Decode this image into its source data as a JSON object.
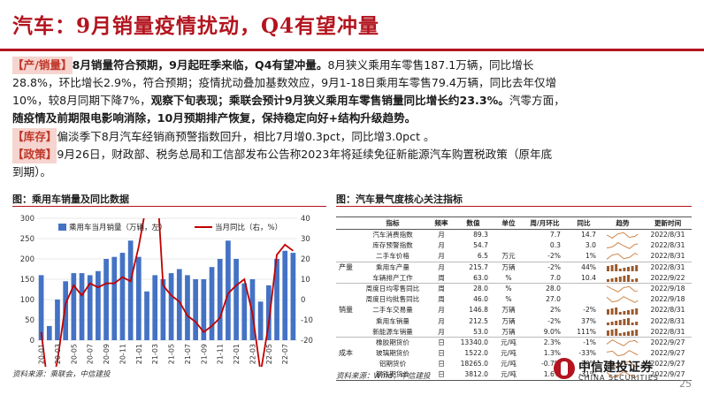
{
  "title": "汽车：9月销量疫情扰动，Q4有望冲量",
  "p1": {
    "tag": "【产/销量】",
    "bold": "8月销量符合预期，9月起旺季来临，Q4有望冲量。",
    "text1": "8月狭义乘用车零售187.1万辆，同比增长",
    "line2": "28.8%，环比增长2.9%，符合预期；疫情扰动叠加基数效应，9月1-18日乘用车零售79.4万辆，同比去年仅增",
    "line3a": "10%，较8月同期下降7%，",
    "line3b": "观察下旬表现；乘联会预计9月狭义乘用车零售销量同比增长约23.3%。",
    "line3c": "汽零方面，",
    "line4": "随疫情及前期限电影响消除，10月预期排产恢复，保持稳定向好+结构升级趋势。"
  },
  "p2": {
    "tag": "【库存】",
    "text": "偏淡季下8月汽车经销商预警指数回升，相比7月增0.3pct，同比增3.0pct 。"
  },
  "p3": {
    "tag": "【政策】",
    "text1": "9月26日，财政部、税务总局和工信部发布公告称2023年将延续免征新能源汽车购置税政策（原年底",
    "text2": "到期）。"
  },
  "left_chart": {
    "caption": "图：乘用车销量及同比数据",
    "source": "资料来源：乘联会，中信建投"
  },
  "chart_data": {
    "type": "bar",
    "categories": [
      "20-01",
      "20-02",
      "20-03",
      "20-04",
      "20-05",
      "20-06",
      "20-07",
      "20-08",
      "20-09",
      "20-10",
      "20-11",
      "20-12",
      "21-01",
      "21-02",
      "21-03",
      "21-04",
      "21-05",
      "21-06",
      "21-07",
      "21-08",
      "21-09",
      "21-10",
      "21-11",
      "21-12",
      "22-01",
      "22-02",
      "22-03",
      "22-04",
      "22-05",
      "22-06",
      "22-07",
      "22-08"
    ],
    "tick_labels": [
      "20-01",
      "20-03",
      "20-05",
      "20-07",
      "20-09",
      "20-11",
      "21-01",
      "21-03",
      "21-05",
      "21-07",
      "21-09",
      "21-11",
      "22-01",
      "22-03",
      "22-05",
      "22-07"
    ],
    "series": [
      {
        "name": "乘用车当月销量（万辆，左）",
        "type": "bar",
        "axis": "left",
        "color": "#4472c4",
        "values": [
          160,
          35,
          100,
          145,
          165,
          165,
          160,
          170,
          200,
          205,
          215,
          245,
          205,
          120,
          160,
          150,
          165,
          175,
          160,
          150,
          150,
          180,
          200,
          245,
          200,
          140,
          150,
          95,
          135,
          200,
          220,
          215
        ]
      },
      {
        "name": "当月同比（右，%）",
        "type": "line",
        "axis": "right",
        "color": "#c00000",
        "values": [
          -16,
          -48,
          -30,
          -2,
          7,
          2,
          8,
          6,
          8,
          8,
          11,
          9,
          26,
          48,
          74,
          7,
          2,
          -1,
          -8,
          -11,
          -16,
          -13,
          -9,
          3,
          7,
          10,
          -7,
          -36,
          -12,
          22,
          27,
          24
        ]
      }
    ],
    "ylim_left": [
      0,
      300
    ],
    "yticks_left": [
      0,
      50,
      100,
      150,
      200,
      250,
      300
    ],
    "ylim_right": [
      -20,
      40
    ],
    "yticks_right": [
      -20,
      -10,
      0,
      10,
      20,
      30,
      40
    ],
    "legend_position": "top"
  },
  "table": {
    "caption": "图：汽车景气度核心关注指标",
    "source": "资料来源：Wind，中信建投",
    "headers": [
      "",
      "指标",
      "频率",
      "数值",
      "单位",
      "周/月环比",
      "同比",
      "趋势",
      "更新时间"
    ],
    "rows": [
      {
        "group": "",
        "indicator": "汽车消费指数",
        "freq": "月",
        "value": "89.3",
        "unit": "",
        "mom": "7.7",
        "yoy": "14.7",
        "trend": "line",
        "date": "2022/8/31"
      },
      {
        "group": "",
        "indicator": "库存预警指数",
        "freq": "月",
        "value": "54.7",
        "unit": "",
        "mom": "0.3",
        "yoy": "3.0",
        "trend": "line",
        "date": "2022/8/31"
      },
      {
        "group": "",
        "indicator": "二手车价格",
        "freq": "月",
        "value": "6.5",
        "unit": "万元",
        "mom": "-2%",
        "yoy": "1%",
        "trend": "line",
        "date": "2022/8/31"
      },
      {
        "group": "产量",
        "indicator": "乘用车产量",
        "freq": "月",
        "value": "215.7",
        "unit": "万辆",
        "mom": "-2%",
        "yoy": "44%",
        "trend": "bar",
        "date": "2022/8/31"
      },
      {
        "group": "",
        "indicator": "车辆排产工作",
        "freq": "周",
        "value": "63.0",
        "unit": "%",
        "mom": "7.0",
        "yoy": "10.4",
        "trend": "bar",
        "date": "2022/9/22"
      },
      {
        "group": "",
        "indicator": "周度日均零售同比",
        "freq": "周",
        "value": "28.0",
        "unit": "%",
        "mom": "28.0",
        "yoy": "",
        "trend": "line",
        "date": "2022/9/18"
      },
      {
        "group": "",
        "indicator": "周度日均批售同比",
        "freq": "周",
        "value": "46.0",
        "unit": "%",
        "mom": "27.0",
        "yoy": "",
        "trend": "line",
        "date": "2022/9/18"
      },
      {
        "group": "销量",
        "indicator": "二手车交易量",
        "freq": "月",
        "value": "146.8",
        "unit": "万辆",
        "mom": "2%",
        "yoy": "-2%",
        "trend": "bar",
        "date": "2022/8/31"
      },
      {
        "group": "",
        "indicator": "乘用车销量",
        "freq": "月",
        "value": "212.5",
        "unit": "万辆",
        "mom": "-2%",
        "yoy": "37%",
        "trend": "bar",
        "date": "2022/8/31"
      },
      {
        "group": "",
        "indicator": "新能源车销量",
        "freq": "月",
        "value": "53.0",
        "unit": "万辆",
        "mom": "9.0%",
        "yoy": "111%",
        "trend": "bar",
        "date": "2022/8/31"
      },
      {
        "group": "",
        "indicator": "橡胶期货价",
        "freq": "日",
        "value": "13340.0",
        "unit": "元/吨",
        "mom": "2.3%",
        "yoy": "-1%",
        "trend": "line",
        "date": "2022/9/27"
      },
      {
        "group": "成本",
        "indicator": "玻璃期货价",
        "freq": "日",
        "value": "1522.0",
        "unit": "元/吨",
        "mom": "1.3%",
        "yoy": "-33%",
        "trend": "line",
        "date": "2022/9/27"
      },
      {
        "group": "",
        "indicator": "铝期货价",
        "freq": "日",
        "value": "18265.0",
        "unit": "元/吨",
        "mom": "-0.7%",
        "yoy": "-20%",
        "trend": "line",
        "date": "2022/9/27"
      },
      {
        "group": "",
        "indicator": "钢铁期货价",
        "freq": "日",
        "value": "3812.0",
        "unit": "元/吨",
        "mom": "1.6%",
        "yoy": "-31%",
        "trend": "line",
        "date": "2022/9/27"
      }
    ]
  },
  "logo": {
    "cn": "中信建投证券",
    "en": "CHINA SECURITIES"
  },
  "page_number": "25",
  "colors": {
    "accent": "#b3141f",
    "bar": "#4472c4",
    "line": "#c00000",
    "tag_bg": "#f6d4cf"
  }
}
